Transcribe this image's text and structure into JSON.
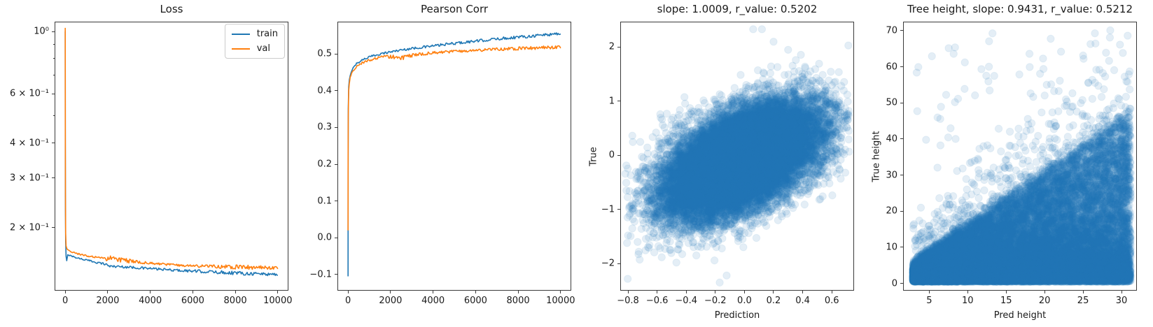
{
  "figure": {
    "background": "#ffffff",
    "spine_color": "#3a3a3a",
    "text_color": "#1a1a1a"
  },
  "chart_data": [
    {
      "id": "loss",
      "type": "line",
      "title": "Loss",
      "legend": [
        "train",
        "val"
      ],
      "x": {
        "label": "",
        "lim": [
          -500,
          10500
        ],
        "ticks": [
          {
            "v": 0,
            "label": "0"
          },
          {
            "v": 2000,
            "label": "2000"
          },
          {
            "v": 4000,
            "label": "4000"
          },
          {
            "v": 6000,
            "label": "6000"
          },
          {
            "v": 8000,
            "label": "8000"
          },
          {
            "v": 10000,
            "label": "10000"
          }
        ]
      },
      "y": {
        "label": "",
        "scale": "log",
        "lim": [
          0.119,
          1.084
        ],
        "ticks": [
          {
            "v": 1.0,
            "label": "10⁰"
          },
          {
            "v": 0.9,
            "minor": true
          },
          {
            "v": 0.8,
            "minor": true
          },
          {
            "v": 0.7,
            "minor": true
          },
          {
            "v": 0.6,
            "minor": true,
            "label": "6 × 10⁻¹"
          },
          {
            "v": 0.5,
            "minor": true
          },
          {
            "v": 0.4,
            "minor": true,
            "label": "4 × 10⁻¹"
          },
          {
            "v": 0.3,
            "minor": true,
            "label": "3 × 10⁻¹"
          },
          {
            "v": 0.2,
            "minor": true,
            "label": "2 × 10⁻¹"
          }
        ]
      },
      "series": [
        {
          "name": "train",
          "color": "#1f77b4",
          "points": [
            [
              0,
              1.0
            ],
            [
              4,
              0.4
            ],
            [
              10,
              0.23
            ],
            [
              20,
              0.178
            ],
            [
              40,
              0.157
            ],
            [
              70,
              0.153
            ],
            [
              120,
              0.16
            ],
            [
              300,
              0.158
            ],
            [
              600,
              0.1555
            ],
            [
              1000,
              0.153
            ],
            [
              1500,
              0.15
            ],
            [
              1900,
              0.148
            ],
            [
              2100,
              0.1455
            ],
            [
              2600,
              0.145
            ],
            [
              3200,
              0.144
            ],
            [
              4000,
              0.1427
            ],
            [
              5000,
              0.141
            ],
            [
              6000,
              0.1398
            ],
            [
              7000,
              0.1387
            ],
            [
              8000,
              0.1377
            ],
            [
              9000,
              0.1368
            ],
            [
              10000,
              0.136
            ]
          ],
          "band": [
            [
              0,
              0.0008
            ],
            [
              1500,
              0.0012
            ],
            [
              2500,
              0.0015
            ],
            [
              5000,
              0.0013
            ],
            [
              6500,
              0.0018
            ],
            [
              8000,
              0.0022
            ],
            [
              9000,
              0.002
            ],
            [
              10000,
              0.0018
            ]
          ]
        },
        {
          "name": "val",
          "color": "#ff7f0e",
          "points": [
            [
              0,
              1.03
            ],
            [
              4,
              0.45
            ],
            [
              10,
              0.26
            ],
            [
              20,
              0.19
            ],
            [
              40,
              0.172
            ],
            [
              80,
              0.168
            ],
            [
              150,
              0.166
            ],
            [
              300,
              0.1638
            ],
            [
              600,
              0.161
            ],
            [
              1000,
              0.1585
            ],
            [
              1500,
              0.156
            ],
            [
              1900,
              0.154
            ],
            [
              2050,
              0.156
            ],
            [
              2400,
              0.1545
            ],
            [
              2800,
              0.1525
            ],
            [
              3300,
              0.1508
            ],
            [
              4000,
              0.149
            ],
            [
              5000,
              0.1472
            ],
            [
              6000,
              0.146
            ],
            [
              7000,
              0.1452
            ],
            [
              8000,
              0.1446
            ],
            [
              9000,
              0.144
            ],
            [
              10000,
              0.1435
            ]
          ],
          "band": [
            [
              0,
              0.0008
            ],
            [
              1500,
              0.0013
            ],
            [
              1950,
              0.003
            ],
            [
              2400,
              0.0032
            ],
            [
              2900,
              0.0028
            ],
            [
              3500,
              0.0015
            ],
            [
              5000,
              0.0013
            ],
            [
              6500,
              0.0018
            ],
            [
              7500,
              0.0022
            ],
            [
              8500,
              0.0026
            ],
            [
              9500,
              0.002
            ],
            [
              10000,
              0.0018
            ]
          ]
        }
      ]
    },
    {
      "id": "pearson_corr",
      "type": "line",
      "title": "Pearson Corr",
      "x": {
        "label": "",
        "lim": [
          -500,
          10500
        ],
        "ticks": [
          {
            "v": 0,
            "label": "0"
          },
          {
            "v": 2000,
            "label": "2000"
          },
          {
            "v": 4000,
            "label": "4000"
          },
          {
            "v": 6000,
            "label": "6000"
          },
          {
            "v": 8000,
            "label": "8000"
          },
          {
            "v": 10000,
            "label": "10000"
          }
        ]
      },
      "y": {
        "label": "",
        "scale": "linear",
        "lim": [
          -0.144,
          0.588
        ],
        "ticks": [
          {
            "v": 0.5,
            "label": "0.5"
          },
          {
            "v": 0.4,
            "label": "0.4"
          },
          {
            "v": 0.3,
            "label": "0.3"
          },
          {
            "v": 0.2,
            "label": "0.2"
          },
          {
            "v": 0.1,
            "label": "0.1"
          },
          {
            "v": 0.0,
            "label": "0.0"
          },
          {
            "v": -0.1,
            "label": "−0.1"
          }
        ]
      },
      "series": [
        {
          "name": "train",
          "color": "#1f77b4",
          "points": [
            [
              0,
              -0.105
            ],
            [
              3,
              0.18
            ],
            [
              10,
              0.35
            ],
            [
              30,
              0.41
            ],
            [
              60,
              0.428
            ],
            [
              100,
              0.443
            ],
            [
              200,
              0.459
            ],
            [
              400,
              0.474
            ],
            [
              700,
              0.485
            ],
            [
              1000,
              0.492
            ],
            [
              1500,
              0.5
            ],
            [
              2000,
              0.506
            ],
            [
              2500,
              0.511
            ],
            [
              3000,
              0.515
            ],
            [
              4000,
              0.522
            ],
            [
              5000,
              0.529
            ],
            [
              6000,
              0.535
            ],
            [
              7000,
              0.541
            ],
            [
              8000,
              0.546
            ],
            [
              9000,
              0.551
            ],
            [
              10000,
              0.556
            ]
          ],
          "band": [
            [
              0,
              0.002
            ],
            [
              1000,
              0.0028
            ],
            [
              3000,
              0.0032
            ],
            [
              6000,
              0.0038
            ],
            [
              8000,
              0.0042
            ],
            [
              10000,
              0.0046
            ]
          ]
        },
        {
          "name": "val",
          "color": "#ff7f0e",
          "points": [
            [
              0,
              0.02
            ],
            [
              3,
              0.22
            ],
            [
              10,
              0.33
            ],
            [
              30,
              0.4
            ],
            [
              60,
              0.42
            ],
            [
              100,
              0.437
            ],
            [
              200,
              0.452
            ],
            [
              400,
              0.466
            ],
            [
              700,
              0.477
            ],
            [
              1000,
              0.483
            ],
            [
              1500,
              0.49
            ],
            [
              2000,
              0.494
            ],
            [
              2250,
              0.489
            ],
            [
              2600,
              0.491
            ],
            [
              3000,
              0.496
            ],
            [
              3500,
              0.5
            ],
            [
              4000,
              0.503
            ],
            [
              5000,
              0.507
            ],
            [
              6000,
              0.51
            ],
            [
              7000,
              0.513
            ],
            [
              8000,
              0.515
            ],
            [
              9000,
              0.517
            ],
            [
              10000,
              0.519
            ]
          ],
          "band": [
            [
              0,
              0.002
            ],
            [
              1500,
              0.004
            ],
            [
              2000,
              0.0065
            ],
            [
              2600,
              0.006
            ],
            [
              3200,
              0.004
            ],
            [
              5000,
              0.0035
            ],
            [
              7000,
              0.004
            ],
            [
              9000,
              0.0045
            ],
            [
              10000,
              0.0045
            ]
          ]
        }
      ]
    },
    {
      "id": "prediction_vs_true",
      "type": "scatter",
      "title": "slope: 1.0009, r_value: 0.5202",
      "stats": {
        "slope": 1.0009,
        "r_value": 0.5202
      },
      "x": {
        "label": "Prediction",
        "lim": [
          -0.853,
          0.753
        ],
        "ticks": [
          {
            "v": -0.8,
            "label": "−0.8"
          },
          {
            "v": -0.6,
            "label": "−0.6"
          },
          {
            "v": -0.4,
            "label": "−0.4"
          },
          {
            "v": -0.2,
            "label": "−0.2"
          },
          {
            "v": 0.0,
            "label": "0.0"
          },
          {
            "v": 0.2,
            "label": "0.2"
          },
          {
            "v": 0.4,
            "label": "0.4"
          },
          {
            "v": 0.6,
            "label": "0.6"
          }
        ]
      },
      "y": {
        "label": "True",
        "scale": "linear",
        "lim": [
          -2.5,
          2.47
        ],
        "ticks": [
          {
            "v": 2,
            "label": "2"
          },
          {
            "v": 1,
            "label": "1"
          },
          {
            "v": 0,
            "label": "0"
          },
          {
            "v": -1,
            "label": "−1"
          },
          {
            "v": -2,
            "label": "−2"
          }
        ]
      },
      "marker": {
        "color": "#1f77b4",
        "alpha": 0.12,
        "radius": 5.2
      },
      "generator": {
        "kind": "bivariate_normal",
        "n": 22000,
        "seed": 42,
        "x_mean": -0.02,
        "x_sd": 0.26,
        "slope": 1.0,
        "noise_mean": -0.06,
        "noise_sd": 0.44,
        "x_range": [
          -0.82,
          0.72
        ],
        "y_range": [
          -2.5,
          2.4
        ]
      },
      "outliers": [
        [
          0.06,
          2.33
        ],
        [
          0.12,
          2.33
        ],
        [
          0.2,
          2.1
        ],
        [
          0.3,
          1.95
        ],
        [
          -0.17,
          -2.35
        ]
      ]
    },
    {
      "id": "tree_height",
      "type": "scatter",
      "title": "Tree height, slope: 0.9431, r_value: 0.5212",
      "stats": {
        "slope": 0.9431,
        "r_value": 0.5212
      },
      "x": {
        "label": "Pred height",
        "lim": [
          1.6,
          32.0
        ],
        "ticks": [
          {
            "v": 5,
            "label": "5"
          },
          {
            "v": 10,
            "label": "10"
          },
          {
            "v": 15,
            "label": "15"
          },
          {
            "v": 20,
            "label": "20"
          },
          {
            "v": 25,
            "label": "25"
          },
          {
            "v": 30,
            "label": "30"
          }
        ]
      },
      "y": {
        "label": "True height",
        "scale": "linear",
        "lim": [
          -2,
          72.5
        ],
        "ticks": [
          {
            "v": 70,
            "label": "70"
          },
          {
            "v": 60,
            "label": "60"
          },
          {
            "v": 50,
            "label": "50"
          },
          {
            "v": 40,
            "label": "40"
          },
          {
            "v": 30,
            "label": "30"
          },
          {
            "v": 20,
            "label": "20"
          },
          {
            "v": 10,
            "label": "10"
          },
          {
            "v": 0,
            "label": "0"
          }
        ]
      },
      "marker": {
        "color": "#1f77b4",
        "alpha": 0.12,
        "radius": 5.2
      },
      "generator": {
        "kind": "height_wedge",
        "n": 24000,
        "seed": 7,
        "x_min": 2.9,
        "x_span": 28.3,
        "slope": 1.5,
        "shape_pow": 2.2,
        "noise_sd": 1.1,
        "base": 1.0,
        "floor": 0.45,
        "cluster_frac": 0.07,
        "tall_frac": 0.005,
        "outlier_frac": 0.035,
        "outlier_span": 40,
        "y_max": 70.3
      }
    }
  ]
}
